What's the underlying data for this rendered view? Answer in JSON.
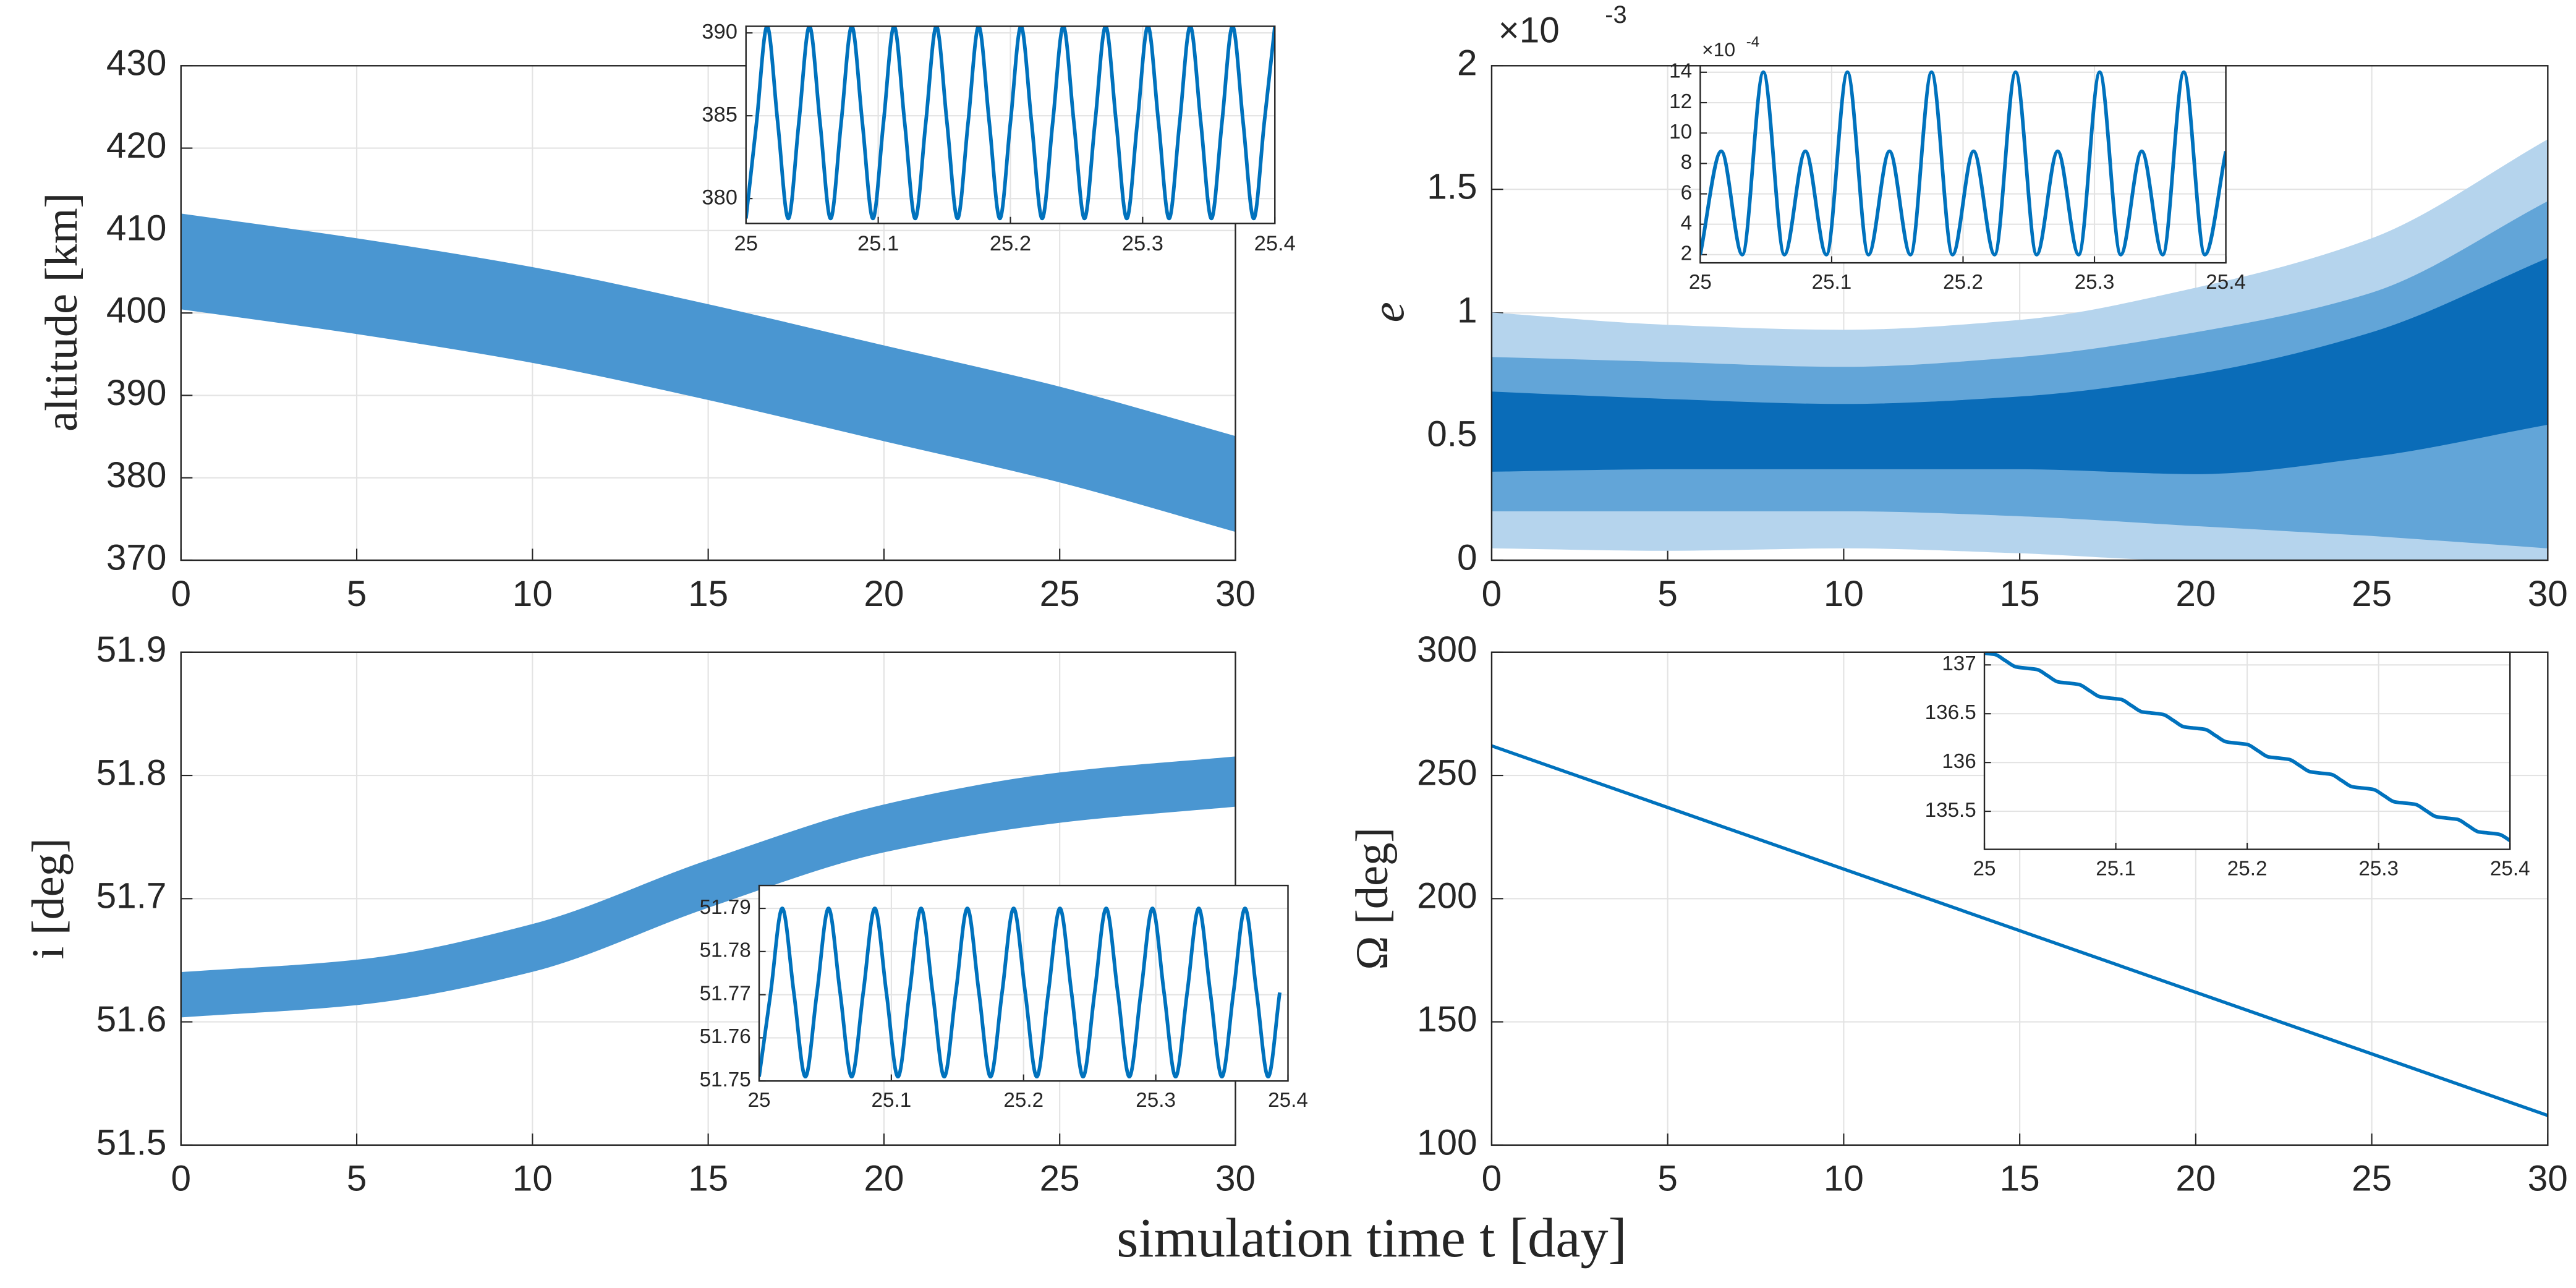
{
  "xlabel": "simulation time t [day]",
  "chart_data": [
    {
      "type": "band",
      "x": [
        0,
        5,
        10,
        15,
        20,
        25,
        30
      ],
      "series": [
        {
          "color": "#4a96d1",
          "values": [
            412,
            409,
            405.5,
            401,
            396,
            391,
            385
          ]
        },
        {
          "color": "#4a96d1",
          "values": [
            400.5,
            397.5,
            394,
            389.5,
            384.5,
            379.5,
            373.5
          ]
        }
      ],
      "xlim": [
        0,
        30
      ],
      "xticks": [
        0,
        5,
        10,
        15,
        20,
        25,
        30
      ],
      "ylim": [
        370,
        430
      ],
      "yticks": [
        370,
        380,
        390,
        400,
        410,
        420,
        430
      ],
      "ylabel": "altitude [km]",
      "grid": true
    },
    {
      "type": "line",
      "x": [
        25,
        25.008,
        25.016,
        25.024,
        25.032,
        25.04,
        25.048,
        25.056,
        25.064,
        25.072,
        25.08,
        25.088,
        25.096,
        25.104,
        25.112,
        25.12,
        25.128,
        25.136,
        25.144,
        25.152,
        25.16,
        25.168,
        25.176,
        25.184,
        25.192,
        25.2,
        25.208,
        25.216,
        25.224,
        25.232,
        25.24,
        25.248,
        25.256,
        25.264,
        25.272,
        25.28,
        25.288,
        25.296,
        25.304,
        25.312,
        25.32,
        25.328,
        25.336,
        25.344,
        25.352,
        25.36,
        25.368,
        25.376,
        25.384,
        25.392,
        25.4
      ],
      "series": [
        {
          "color": "#0072bd",
          "values": [
            378.8,
            384.6,
            390.4,
            384.6,
            378.8,
            384.6,
            390.4,
            384.6,
            378.8,
            384.6,
            390.4,
            384.6,
            378.8,
            384.6,
            390.4,
            384.6,
            378.8,
            384.6,
            390.4,
            384.6,
            378.8,
            384.6,
            390.4,
            384.6,
            378.8,
            384.6,
            390.4,
            384.6,
            378.8,
            384.6,
            390.4,
            384.6,
            378.8,
            384.6,
            390.4,
            384.6,
            378.8,
            384.6,
            390.4,
            384.6,
            378.8,
            384.6,
            390.4,
            384.6,
            378.8,
            384.6,
            390.4,
            384.6,
            378.8,
            384.6,
            390.4
          ]
        }
      ],
      "xlim": [
        25,
        25.4
      ],
      "xticks": [
        25,
        25.1,
        25.2,
        25.3,
        25.4
      ],
      "ylim": [
        378.5,
        390.4
      ],
      "yticks": [
        380,
        385,
        390
      ],
      "grid": true
    },
    {
      "type": "band",
      "x": [
        0,
        5,
        10,
        15,
        20,
        25,
        30
      ],
      "series": [
        {
          "color": "#b5d4ed",
          "values": [
            1.0,
            0.95,
            0.93,
            0.97,
            1.1,
            1.3,
            1.7
          ]
        },
        {
          "color": "#b5d4ed",
          "values": [
            0.05,
            0.04,
            0.05,
            0.03,
            0,
            0,
            0
          ]
        },
        {
          "color": "#62a5d8",
          "values": [
            0.82,
            0.8,
            0.78,
            0.82,
            0.92,
            1.08,
            1.45
          ]
        },
        {
          "color": "#62a5d8",
          "values": [
            0.2,
            0.2,
            0.2,
            0.18,
            0.14,
            0.1,
            0.05
          ]
        },
        {
          "color": "#0a6cb8",
          "values": [
            0.68,
            0.65,
            0.63,
            0.66,
            0.75,
            0.92,
            1.22
          ]
        },
        {
          "color": "#0a6cb8",
          "values": [
            0.36,
            0.37,
            0.37,
            0.37,
            0.35,
            0.42,
            0.55
          ]
        }
      ],
      "xlim": [
        0,
        30
      ],
      "xticks": [
        0,
        5,
        10,
        15,
        20,
        25,
        30
      ],
      "ylim": [
        0,
        2
      ],
      "yticks": [
        0,
        0.5,
        1,
        1.5,
        2
      ],
      "ylabel": "e",
      "multiplier": "×10",
      "exponent": "-3",
      "grid": true
    },
    {
      "type": "line",
      "x": [
        25,
        25.016,
        25.032,
        25.048,
        25.064,
        25.08,
        25.096,
        25.112,
        25.128,
        25.144,
        25.16,
        25.176,
        25.192,
        25.208,
        25.224,
        25.24,
        25.256,
        25.272,
        25.288,
        25.304,
        25.32,
        25.336,
        25.352,
        25.368,
        25.384,
        25.4
      ],
      "series": [
        {
          "color": "#0072bd",
          "values": [
            2,
            8.8,
            2,
            14,
            2,
            8.8,
            2,
            14,
            2,
            8.8,
            2,
            14,
            2,
            8.8,
            2,
            14,
            2,
            8.8,
            2,
            14,
            2,
            8.8,
            2,
            14,
            2,
            8.8
          ]
        }
      ],
      "xlim": [
        25,
        25.4
      ],
      "xticks": [
        25,
        25.1,
        25.2,
        25.3,
        25.4
      ],
      "ylim": [
        1.46,
        14.43
      ],
      "yticks": [
        2,
        4,
        6,
        8,
        10,
        12,
        14
      ],
      "multiplier": "×10",
      "exponent": "-4",
      "grid": true
    },
    {
      "type": "band",
      "x": [
        0,
        5,
        10,
        15,
        20,
        25,
        30
      ],
      "series": [
        {
          "color": "#4a96d1",
          "values": [
            51.64,
            51.65,
            51.679,
            51.731,
            51.776,
            51.802,
            51.815
          ]
        },
        {
          "color": "#4a96d1",
          "values": [
            51.604,
            51.614,
            51.641,
            51.693,
            51.738,
            51.762,
            51.775
          ]
        }
      ],
      "xlim": [
        0,
        30
      ],
      "xticks": [
        0,
        5,
        10,
        15,
        20,
        25,
        30
      ],
      "ylim": [
        51.5,
        51.9
      ],
      "yticks": [
        51.5,
        51.6,
        51.7,
        51.8,
        51.9
      ],
      "ylabel": "i [deg]",
      "grid": true
    },
    {
      "type": "line",
      "x": [
        25,
        25.00875,
        25.0175,
        25.02625,
        25.035,
        25.04375,
        25.0525,
        25.06125,
        25.07,
        25.07875,
        25.0875,
        25.09625,
        25.105,
        25.11375,
        25.1225,
        25.13125,
        25.14,
        25.14875,
        25.1575,
        25.16625,
        25.175,
        25.18375,
        25.1925,
        25.20125,
        25.21,
        25.21875,
        25.2275,
        25.23625,
        25.245,
        25.25375,
        25.2625,
        25.27125,
        25.28,
        25.28875,
        25.2975,
        25.30625,
        25.315,
        25.32375,
        25.3325,
        25.34125,
        25.35,
        25.35875,
        25.3675,
        25.37625,
        25.385,
        25.39375
      ],
      "series": [
        {
          "color": "#0072bd",
          "values": [
            51.751,
            51.7705,
            51.79,
            51.7705,
            51.751,
            51.7705,
            51.79,
            51.7705,
            51.751,
            51.7705,
            51.79,
            51.7705,
            51.751,
            51.7705,
            51.79,
            51.7705,
            51.751,
            51.7705,
            51.79,
            51.7705,
            51.751,
            51.7705,
            51.79,
            51.7705,
            51.751,
            51.7705,
            51.79,
            51.7705,
            51.751,
            51.7705,
            51.79,
            51.7705,
            51.751,
            51.7705,
            51.79,
            51.7705,
            51.751,
            51.7705,
            51.79,
            51.7705,
            51.751,
            51.7705,
            51.79,
            51.7705,
            51.751,
            51.7705
          ]
        }
      ],
      "xlim": [
        25,
        25.4
      ],
      "xticks": [
        25,
        25.1,
        25.2,
        25.3,
        25.4
      ],
      "ylim": [
        51.75,
        51.7953
      ],
      "yticks": [
        51.75,
        51.76,
        51.77,
        51.78,
        51.79
      ],
      "grid": true
    },
    {
      "type": "line",
      "x": [
        0,
        30
      ],
      "series": [
        {
          "color": "#0072bd",
          "values": [
            262,
            112
          ]
        }
      ],
      "xlim": [
        0,
        30
      ],
      "xticks": [
        0,
        5,
        10,
        15,
        20,
        25,
        30
      ],
      "ylim": [
        100,
        300
      ],
      "yticks": [
        100,
        150,
        200,
        250,
        300
      ],
      "ylabel": "Ω [deg]",
      "grid": true
    },
    {
      "type": "line",
      "x": [
        25,
        25.008,
        25.016,
        25.024,
        25.032,
        25.04,
        25.048,
        25.056,
        25.064,
        25.072,
        25.08,
        25.088,
        25.096,
        25.104,
        25.112,
        25.12,
        25.128,
        25.136,
        25.144,
        25.152,
        25.16,
        25.168,
        25.176,
        25.184,
        25.192,
        25.2,
        25.208,
        25.216,
        25.224,
        25.232,
        25.24,
        25.248,
        25.256,
        25.264,
        25.272,
        25.28,
        25.288,
        25.296,
        25.304,
        25.312,
        25.32,
        25.328,
        25.336,
        25.344,
        25.352,
        25.36,
        25.368,
        25.376,
        25.384,
        25.392,
        25.4
      ],
      "series": [
        {
          "color": "#0072bd",
          "values": [
            137.12,
            137.107,
            137.043,
            136.98,
            136.966,
            136.953,
            136.89,
            136.826,
            136.813,
            136.799,
            136.736,
            136.673,
            136.659,
            136.646,
            136.582,
            136.519,
            136.506,
            136.492,
            136.429,
            136.365,
            136.352,
            136.339,
            136.275,
            136.212,
            136.198,
            136.185,
            136.122,
            136.058,
            136.045,
            136.031,
            135.968,
            135.905,
            135.891,
            135.878,
            135.814,
            135.751,
            135.738,
            135.724,
            135.661,
            135.597,
            135.584,
            135.571,
            135.507,
            135.444,
            135.43,
            135.417,
            135.354,
            135.29,
            135.277,
            135.263,
            135.2
          ]
        }
      ],
      "xlim": [
        25,
        25.4
      ],
      "xticks": [
        25,
        25.1,
        25.2,
        25.3,
        25.4
      ],
      "ylim": [
        135.11,
        137.13
      ],
      "yticks": [
        135.5,
        136,
        136.5,
        137
      ],
      "grid": true
    }
  ]
}
